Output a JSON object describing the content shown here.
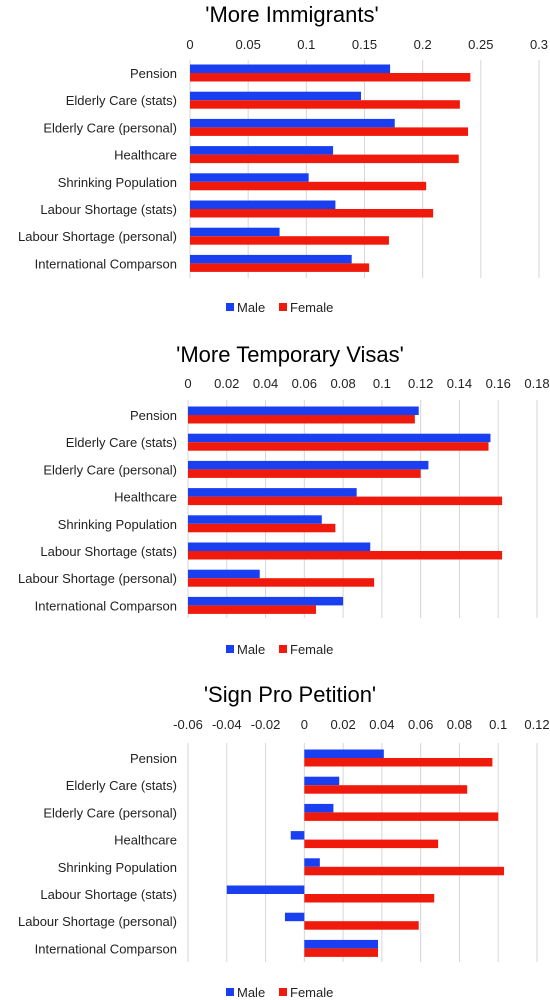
{
  "chart_data": [
    {
      "type": "bar",
      "orientation": "horizontal",
      "title": "'More Immigrants'",
      "categories": [
        "Pension",
        "Elderly Care (stats)",
        "Elderly Care (personal)",
        "Healthcare",
        "Shrinking Population",
        "Labour Shortage (stats)",
        "Labour Shortage (personal)",
        "International Comparson"
      ],
      "xlim": [
        0,
        0.3
      ],
      "ticks": [
        0,
        0.05,
        0.1,
        0.15,
        0.2,
        0.25,
        0.3
      ],
      "tick_labels": [
        "0",
        "0.05",
        "0.1",
        "0.15",
        "0.2",
        "0.25",
        "0.3"
      ],
      "grid": true,
      "legend_position": "bottom",
      "series": [
        {
          "name": "Male",
          "color": "#1a3ff0",
          "values": [
            0.172,
            0.147,
            0.176,
            0.123,
            0.102,
            0.125,
            0.077,
            0.139
          ]
        },
        {
          "name": "Female",
          "color": "#f01a0c",
          "values": [
            0.241,
            0.232,
            0.239,
            0.231,
            0.203,
            0.209,
            0.171,
            0.154
          ]
        }
      ]
    },
    {
      "type": "bar",
      "orientation": "horizontal",
      "title": "'More Temporary Visas'",
      "categories": [
        "Pension",
        "Elderly Care (stats)",
        "Elderly Care (personal)",
        "Healthcare",
        "Shrinking Population",
        "Labour Shortage (stats)",
        "Labour Shortage (personal)",
        "International Comparson"
      ],
      "xlim": [
        0,
        0.18
      ],
      "ticks": [
        0,
        0.02,
        0.04,
        0.06,
        0.08,
        0.1,
        0.12,
        0.14,
        0.16,
        0.18
      ],
      "tick_labels": [
        "0",
        "0.02",
        "0.04",
        "0.06",
        "0.08",
        "0.1",
        "0.12",
        "0.14",
        "0.16",
        "0.18"
      ],
      "grid": true,
      "legend_position": "bottom",
      "series": [
        {
          "name": "Male",
          "color": "#1a3ff0",
          "values": [
            0.119,
            0.156,
            0.124,
            0.087,
            0.069,
            0.094,
            0.037,
            0.08
          ]
        },
        {
          "name": "Female",
          "color": "#f01a0c",
          "values": [
            0.117,
            0.155,
            0.12,
            0.162,
            0.076,
            0.162,
            0.096,
            0.066
          ]
        }
      ]
    },
    {
      "type": "bar",
      "orientation": "horizontal",
      "title": "'Sign Pro Petition'",
      "categories": [
        "Pension",
        "Elderly Care (stats)",
        "Elderly Care (personal)",
        "Healthcare",
        "Shrinking Population",
        "Labour Shortage (stats)",
        "Labour Shortage (personal)",
        "International Comparson"
      ],
      "xlim": [
        -0.06,
        0.12
      ],
      "ticks": [
        -0.06,
        -0.04,
        -0.02,
        0,
        0.02,
        0.04,
        0.06,
        0.08,
        0.1,
        0.12
      ],
      "tick_labels": [
        "-0.06",
        "-0.04",
        "-0.02",
        "0",
        "0.02",
        "0.04",
        "0.06",
        "0.08",
        "0.1",
        "0.12"
      ],
      "grid": true,
      "legend_position": "bottom",
      "series": [
        {
          "name": "Male",
          "color": "#1a3ff0",
          "values": [
            0.041,
            0.018,
            0.015,
            -0.007,
            0.008,
            -0.04,
            -0.01,
            0.038
          ]
        },
        {
          "name": "Female",
          "color": "#f01a0c",
          "values": [
            0.097,
            0.084,
            0.1,
            0.069,
            0.103,
            0.067,
            0.059,
            0.038
          ]
        }
      ]
    }
  ]
}
